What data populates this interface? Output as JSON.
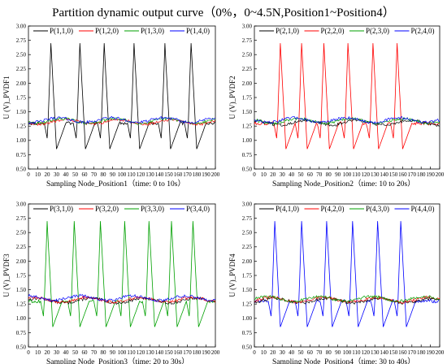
{
  "page": {
    "title": "Partition dynamic output curve（0%，0~4.5N,Position1~Position4）"
  },
  "series_colors": [
    "#000000",
    "#ff0000",
    "#00a000",
    "#0000ff"
  ],
  "chart_data": [
    {
      "type": "line",
      "xlabel": "Sampling Node_Position1（time: 0 to 10s）",
      "ylabel": "U (V)_PVDF1",
      "xlim": [
        0,
        200
      ],
      "ylim": [
        0.5,
        3.0
      ],
      "xticks": [
        "0",
        "10",
        "20",
        "30",
        "40",
        "50",
        "60",
        "70",
        "80",
        "90",
        "100",
        "110",
        "120",
        "130",
        "140",
        "150",
        "160",
        "170",
        "180",
        "190",
        "200"
      ],
      "yticks": [
        "0.50",
        "0.75",
        "1.00",
        "1.25",
        "1.50",
        "1.75",
        "2.00",
        "2.25",
        "2.50",
        "2.75",
        "3.00"
      ],
      "active": 0,
      "peaks": [
        24,
        55,
        81,
        113,
        146,
        174
      ],
      "series": [
        {
          "name": "P(1,1,0)",
          "values": []
        },
        {
          "name": "P(1,2,0)",
          "values": []
        },
        {
          "name": "P(1,3,0)",
          "values": []
        },
        {
          "name": "P(1,4,0)",
          "values": []
        }
      ]
    },
    {
      "type": "line",
      "xlabel": "Sampling Node_Position2（time: 10 to 20s）",
      "ylabel": "U (V)_PVDF2",
      "xlim": [
        0,
        200
      ],
      "ylim": [
        0.5,
        3.0
      ],
      "xticks": [
        "0",
        "10",
        "20",
        "30",
        "40",
        "50",
        "60",
        "70",
        "80",
        "90",
        "100",
        "110",
        "120",
        "130",
        "140",
        "150",
        "160",
        "170",
        "180",
        "190",
        "200"
      ],
      "yticks": [
        "0.50",
        "0.75",
        "1.00",
        "1.25",
        "1.50",
        "1.75",
        "2.00",
        "2.25",
        "2.50",
        "2.75",
        "3.00"
      ],
      "active": 1,
      "peaks": [
        28,
        51,
        75,
        101,
        128,
        154
      ],
      "series": [
        {
          "name": "P(2,1,0)",
          "values": []
        },
        {
          "name": "P(2,2,0)",
          "values": []
        },
        {
          "name": "P(2,3,0)",
          "values": []
        },
        {
          "name": "P(2,4,0)",
          "values": []
        }
      ]
    },
    {
      "type": "line",
      "xlabel": "Sampling Node_Position3（time: 20 to 30s）",
      "ylabel": "U (V)_PVDF3",
      "xlim": [
        0,
        200
      ],
      "ylim": [
        0.5,
        3.0
      ],
      "xticks": [
        "0",
        "10",
        "20",
        "30",
        "40",
        "50",
        "60",
        "70",
        "80",
        "90",
        "100",
        "110",
        "120",
        "130",
        "140",
        "150",
        "160",
        "170",
        "180",
        "190",
        "200"
      ],
      "yticks": [
        "0.50",
        "0.75",
        "1.00",
        "1.25",
        "1.50",
        "1.75",
        "2.00",
        "2.25",
        "2.50",
        "2.75",
        "3.00"
      ],
      "active": 2,
      "peaks": [
        20,
        49,
        77,
        103,
        129,
        153,
        176
      ],
      "series": [
        {
          "name": "P(3,1,0)",
          "values": []
        },
        {
          "name": "P(3,2,0)",
          "values": []
        },
        {
          "name": "P(3,3,0)",
          "values": []
        },
        {
          "name": "P(3,4,0)",
          "values": []
        }
      ]
    },
    {
      "type": "line",
      "xlabel": "Sampling Node_Position4（time: 30 to 40s）",
      "ylabel": "U (V)_PVDF4",
      "xlim": [
        0,
        200
      ],
      "ylim": [
        0.5,
        3.0
      ],
      "xticks": [
        "0",
        "10",
        "20",
        "30",
        "40",
        "50",
        "60",
        "70",
        "80",
        "90",
        "100",
        "110",
        "120",
        "130",
        "140",
        "150",
        "160",
        "170",
        "180",
        "190",
        "200"
      ],
      "yticks": [
        "0.50",
        "0.75",
        "1.00",
        "1.25",
        "1.50",
        "1.75",
        "2.00",
        "2.25",
        "2.50",
        "2.75",
        "3.00"
      ],
      "active": 3,
      "peaks": [
        22,
        51,
        78,
        106,
        133,
        158
      ],
      "series": [
        {
          "name": "P(4,1,0)",
          "values": []
        },
        {
          "name": "P(4,2,0)",
          "values": []
        },
        {
          "name": "P(4,3,0)",
          "values": []
        },
        {
          "name": "P(4,4,0)",
          "values": []
        }
      ]
    }
  ]
}
